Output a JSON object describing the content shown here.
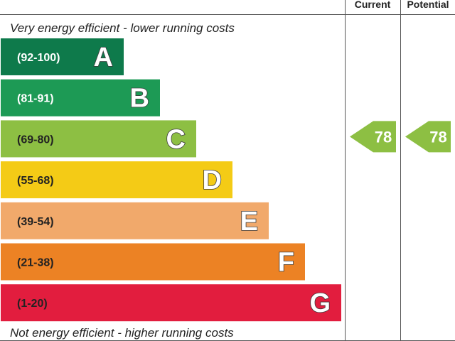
{
  "header": {
    "current_label": "Current",
    "potential_label": "Potential"
  },
  "top_note": "Very energy efficient - lower running costs",
  "bottom_note": "Not energy efficient - higher running costs",
  "chart_data": {
    "type": "bar",
    "bands": [
      {
        "letter": "A",
        "range": "(92-100)",
        "min": 92,
        "max": 100,
        "color": "#0e7a4b",
        "text_color": "#ffffff"
      },
      {
        "letter": "B",
        "range": "(81-91)",
        "min": 81,
        "max": 91,
        "color": "#1d9a55",
        "text_color": "#ffffff"
      },
      {
        "letter": "C",
        "range": "(69-80)",
        "min": 69,
        "max": 80,
        "color": "#8dbf43",
        "text_color": "#222222"
      },
      {
        "letter": "D",
        "range": "(55-68)",
        "min": 55,
        "max": 68,
        "color": "#f4cb16",
        "text_color": "#222222"
      },
      {
        "letter": "E",
        "range": "(39-54)",
        "min": 39,
        "max": 54,
        "color": "#f1a96b",
        "text_color": "#222222"
      },
      {
        "letter": "F",
        "range": "(21-38)",
        "min": 21,
        "max": 38,
        "color": "#ec8224",
        "text_color": "#222222"
      },
      {
        "letter": "G",
        "range": "(1-20)",
        "min": 1,
        "max": 20,
        "color": "#e21d3e",
        "text_color": "#222222"
      }
    ],
    "current": {
      "value": 78,
      "band": "C",
      "color": "#8dbf43"
    },
    "potential": {
      "value": 78,
      "band": "C",
      "color": "#8dbf43"
    }
  }
}
